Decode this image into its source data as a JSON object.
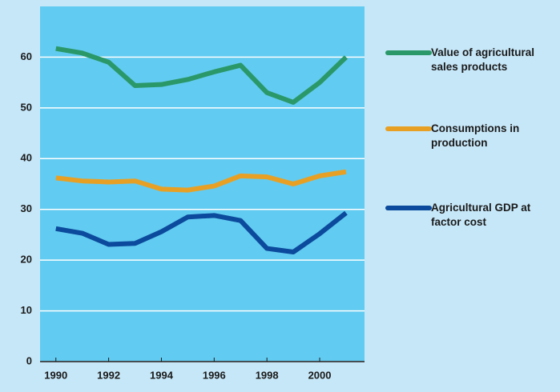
{
  "chart_data": {
    "type": "line",
    "x": [
      1990,
      1991,
      1992,
      1993,
      1994,
      1995,
      1996,
      1997,
      1998,
      1999,
      2000,
      2001
    ],
    "series": [
      {
        "name": "Value of agricultural sales products",
        "color": "#2a9868",
        "values": [
          61.7,
          60.8,
          59,
          54.4,
          54.6,
          55.6,
          57.1,
          58.4,
          53,
          51.1,
          55,
          60
        ]
      },
      {
        "name": "Consumptions in production",
        "color": "#e8a024",
        "values": [
          36.2,
          35.6,
          35.4,
          35.6,
          34,
          33.8,
          34.6,
          36.6,
          36.4,
          35,
          36.6,
          37.4
        ]
      },
      {
        "name": "Agricultural GDP at factor cost",
        "color": "#0b4a9c",
        "values": [
          26.2,
          25.3,
          23.1,
          23.3,
          25.6,
          28.5,
          28.8,
          27.8,
          22.3,
          21.6,
          25.2,
          29.3
        ]
      }
    ],
    "xlim": [
      1989.4,
      2001.7
    ],
    "xticks": [
      1990,
      1992,
      1994,
      1996,
      1998,
      2000
    ],
    "ylim": [
      0,
      70
    ],
    "yticks": [
      0,
      10,
      20,
      30,
      40,
      50,
      60
    ],
    "grid": true
  }
}
